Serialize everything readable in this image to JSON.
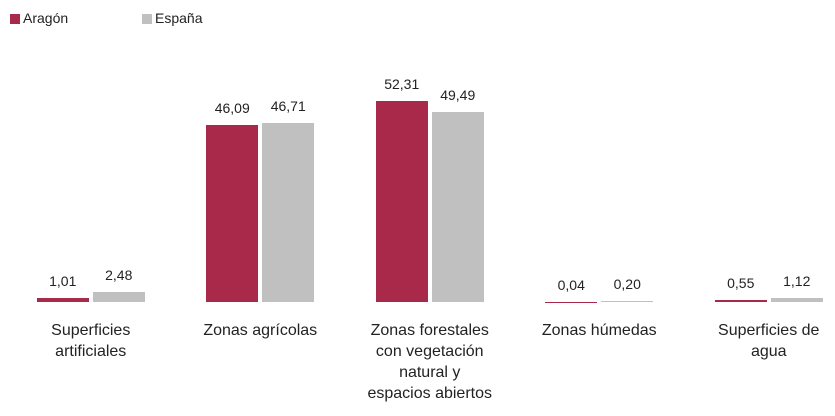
{
  "chart_data": {
    "type": "bar",
    "categories": [
      "Superficies artificiales",
      "Zonas agrícolas",
      "Zonas forestales con vegetación natural y espacios abiertos",
      "Zonas húmedas",
      "Superficies de agua"
    ],
    "series": [
      {
        "name": "Aragón",
        "color": "#a8294a",
        "values": [
          1.01,
          46.09,
          52.31,
          0.04,
          0.55
        ],
        "value_labels": [
          "1,01",
          "46,09",
          "52,31",
          "0,04",
          "0,55"
        ]
      },
      {
        "name": "España",
        "color": "#c0c0c0",
        "values": [
          2.48,
          46.71,
          49.49,
          0.2,
          1.12
        ],
        "value_labels": [
          "2,48",
          "46,71",
          "49,49",
          "0,20",
          "1,12"
        ]
      }
    ],
    "legend": "top-left"
  }
}
